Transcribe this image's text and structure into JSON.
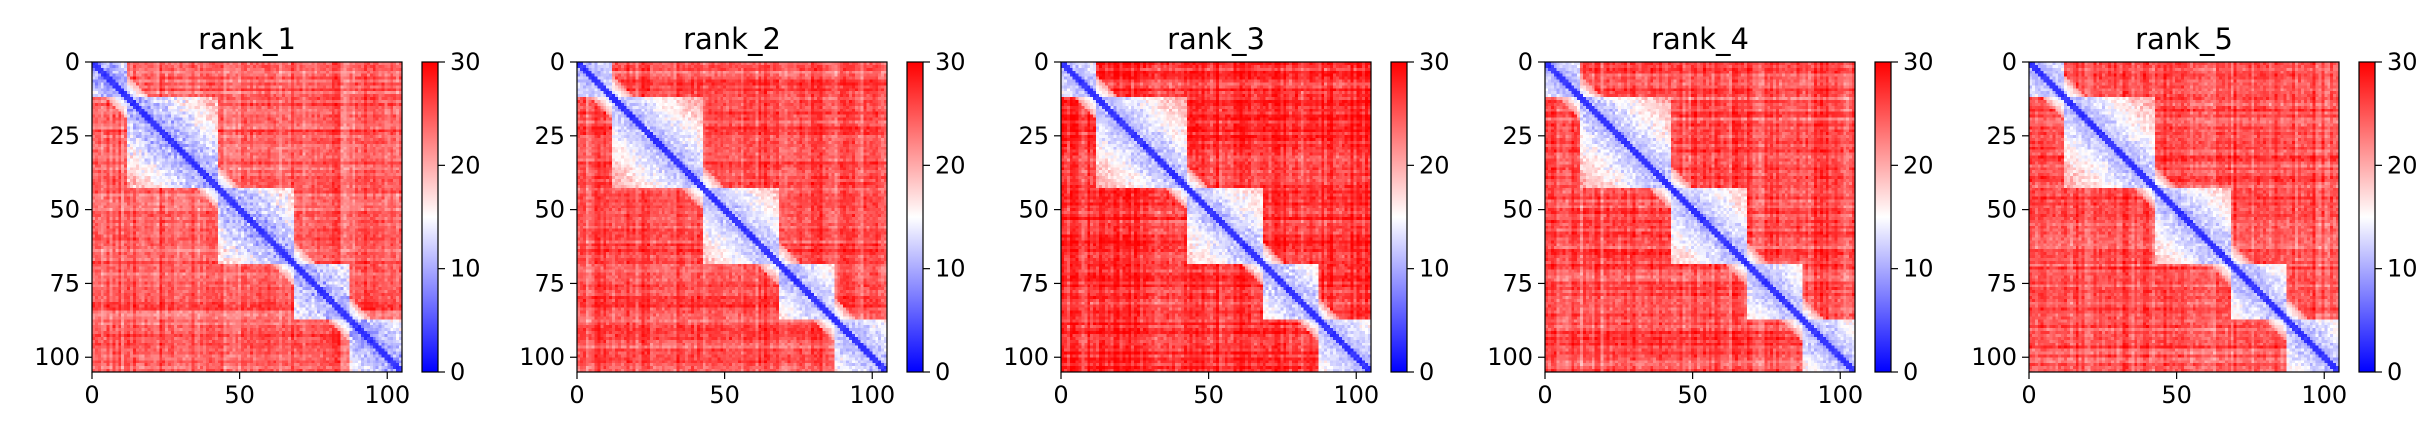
{
  "colors": {
    "low": "#0000ff",
    "mid": "#ffffff",
    "high": "#ff0000",
    "axis": "#000000"
  },
  "chart_data": [
    {
      "type": "heatmap",
      "title": "rank_1",
      "matrix_size": 106,
      "x_ticks": [
        0,
        50,
        100
      ],
      "y_ticks": [
        0,
        25,
        50,
        75,
        100
      ],
      "xlim": [
        0,
        105
      ],
      "ylim": [
        105,
        0
      ],
      "colorbar": {
        "ticks": [
          0,
          10,
          20,
          30
        ],
        "range": [
          0,
          30
        ],
        "colormap": "bwr"
      },
      "grid": false,
      "domains": [
        [
          0,
          11
        ],
        [
          12,
          42
        ],
        [
          43,
          68
        ],
        [
          69,
          87
        ],
        [
          88,
          105
        ]
      ],
      "pattern": {
        "diagonal": 2,
        "domain_interior": 9,
        "far_field": 24,
        "domain_noise": 4
      }
    },
    {
      "type": "heatmap",
      "title": "rank_2",
      "matrix_size": 106,
      "x_ticks": [
        0,
        50,
        100
      ],
      "y_ticks": [
        0,
        25,
        50,
        75,
        100
      ],
      "xlim": [
        0,
        105
      ],
      "ylim": [
        105,
        0
      ],
      "colorbar": {
        "ticks": [
          0,
          10,
          20,
          30
        ],
        "range": [
          0,
          30
        ],
        "colormap": "bwr"
      },
      "grid": false,
      "domains": [
        [
          0,
          11
        ],
        [
          12,
          42
        ],
        [
          43,
          68
        ],
        [
          69,
          87
        ],
        [
          88,
          105
        ]
      ],
      "pattern": {
        "diagonal": 2,
        "domain_interior": 10,
        "far_field": 25,
        "domain_noise": 3
      }
    },
    {
      "type": "heatmap",
      "title": "rank_3",
      "matrix_size": 106,
      "x_ticks": [
        0,
        50,
        100
      ],
      "y_ticks": [
        0,
        25,
        50,
        75,
        100
      ],
      "xlim": [
        0,
        105
      ],
      "ylim": [
        105,
        0
      ],
      "colorbar": {
        "ticks": [
          0,
          10,
          20,
          30
        ],
        "range": [
          0,
          30
        ],
        "colormap": "bwr"
      },
      "grid": false,
      "domains": [
        [
          0,
          11
        ],
        [
          12,
          42
        ],
        [
          43,
          68
        ],
        [
          69,
          87
        ],
        [
          88,
          105
        ]
      ],
      "pattern": {
        "diagonal": 2,
        "domain_interior": 10,
        "far_field": 27,
        "domain_noise": 3
      }
    },
    {
      "type": "heatmap",
      "title": "rank_4",
      "matrix_size": 106,
      "x_ticks": [
        0,
        50,
        100
      ],
      "y_ticks": [
        0,
        25,
        50,
        75,
        100
      ],
      "xlim": [
        0,
        105
      ],
      "ylim": [
        105,
        0
      ],
      "colorbar": {
        "ticks": [
          0,
          10,
          20,
          30
        ],
        "range": [
          0,
          30
        ],
        "colormap": "bwr"
      },
      "grid": false,
      "domains": [
        [
          0,
          11
        ],
        [
          12,
          42
        ],
        [
          43,
          68
        ],
        [
          69,
          87
        ],
        [
          88,
          105
        ]
      ],
      "pattern": {
        "diagonal": 2,
        "domain_interior": 10,
        "far_field": 25,
        "domain_noise": 3
      }
    },
    {
      "type": "heatmap",
      "title": "rank_5",
      "matrix_size": 106,
      "x_ticks": [
        0,
        50,
        100
      ],
      "y_ticks": [
        0,
        25,
        50,
        75,
        100
      ],
      "xlim": [
        0,
        105
      ],
      "ylim": [
        105,
        0
      ],
      "colorbar": {
        "ticks": [
          0,
          10,
          20,
          30
        ],
        "range": [
          0,
          30
        ],
        "colormap": "bwr"
      },
      "grid": false,
      "domains": [
        [
          0,
          11
        ],
        [
          12,
          42
        ],
        [
          43,
          68
        ],
        [
          69,
          87
        ],
        [
          88,
          105
        ]
      ],
      "pattern": {
        "diagonal": 2,
        "domain_interior": 10,
        "far_field": 25,
        "domain_noise": 3
      }
    }
  ]
}
